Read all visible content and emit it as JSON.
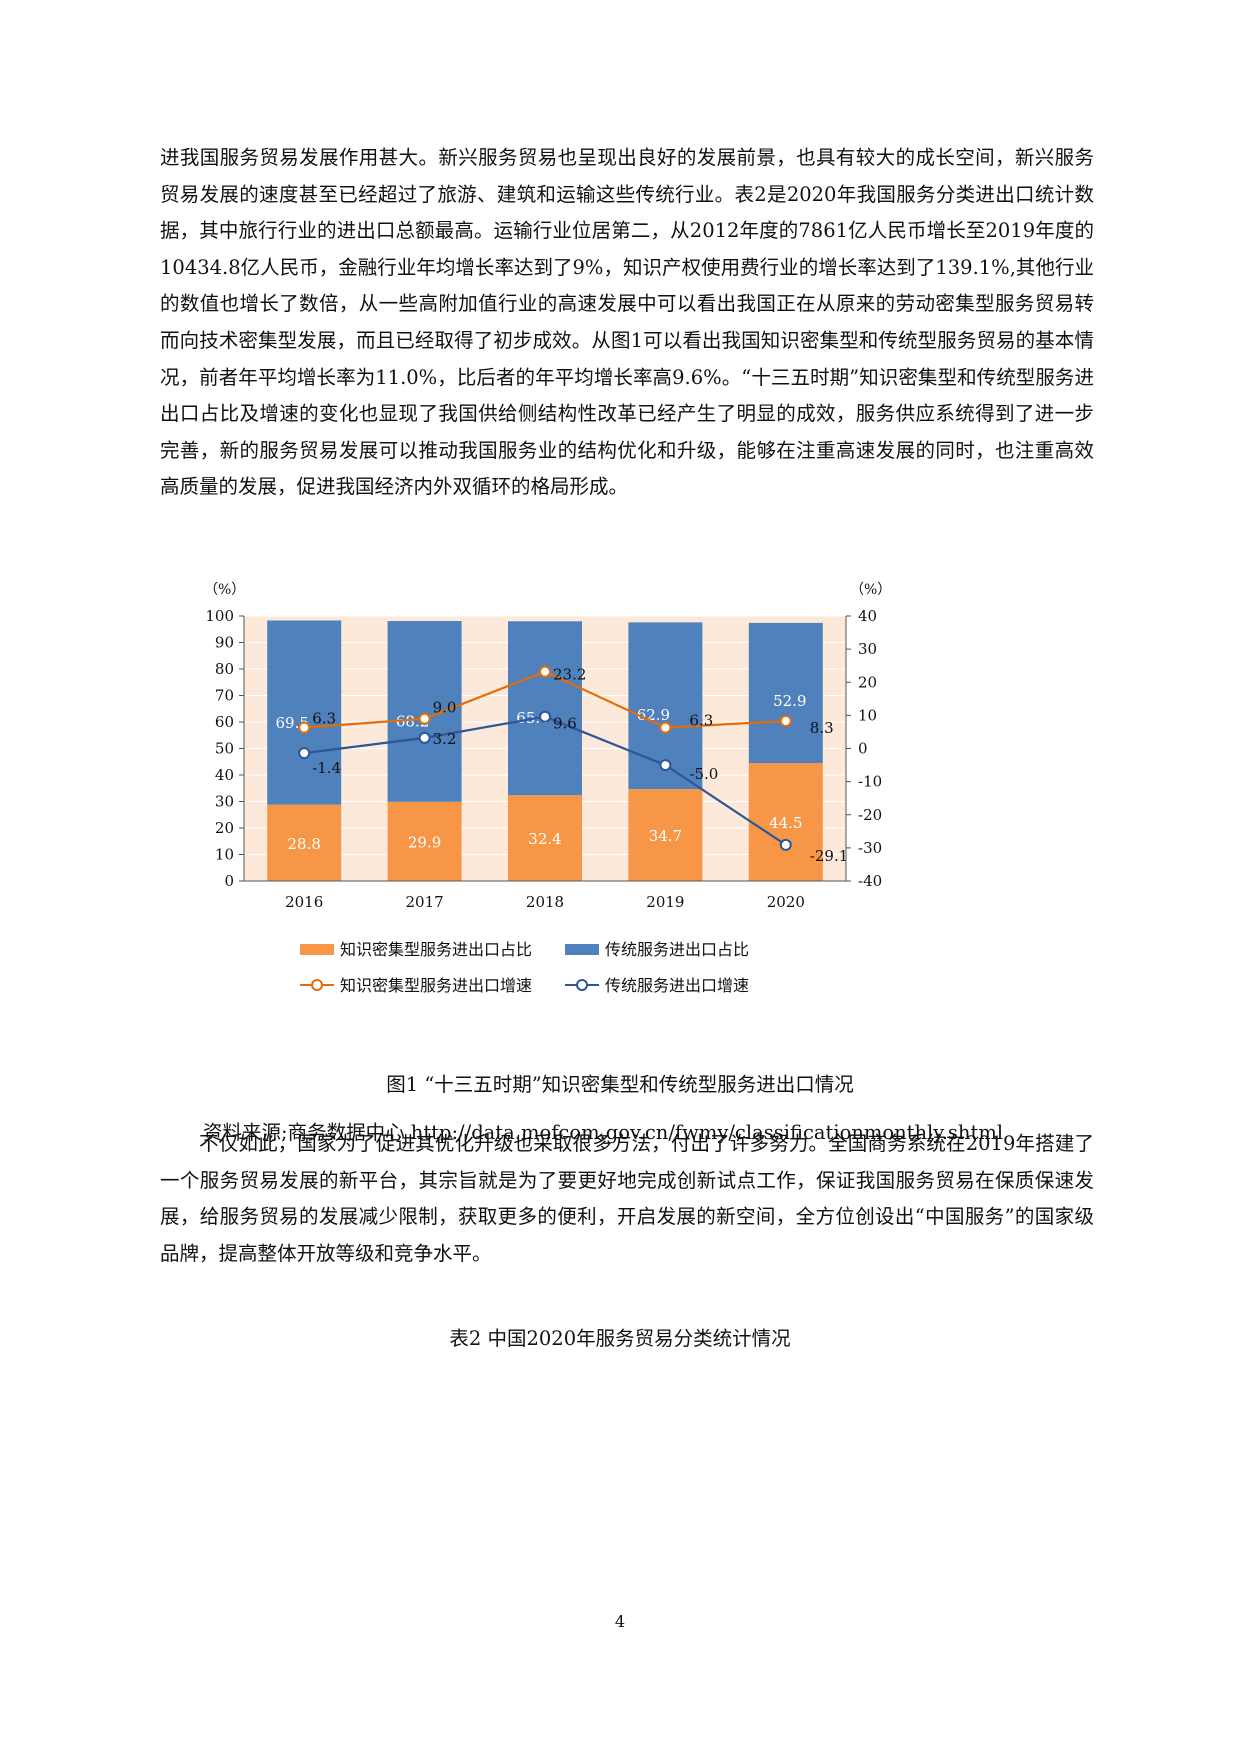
{
  "paragraphs": {
    "p1": "进我国服务贸易发展作用甚大。新兴服务贸易也呈现出良好的发展前景，也具有较大的成长空间，新兴服务贸易发展的速度甚至已经超过了旅游、建筑和运输这些传统行业。表2是2020年我国服务分类进出口统计数据，其中旅行行业的进出口总额最高。运输行业位居第二，从2012年度的7861亿人民币增长至2019年度的10434.8亿人民币，金融行业年均增长率达到了9%，知识产权使用费行业的增长率达到了139.1%,其他行业的数值也增长了数倍，从一些高附加值行业的高速发展中可以看出我国正在从原来的劳动密集型服务贸易转而向技术密集型发展，而且已经取得了初步成效。从图1可以看出我国知识密集型和传统型服务贸易的基本情况，前者年平均增长率为11.0%，比后者的年平均增长率高9.6%。“十三五时期”知识密集型和传统型服务进出口占比及增速的变化也显现了我国供给侧结构性改革已经产生了明显的成效，服务供应系统得到了进一步完善，新的服务贸易发展可以推动我国服务业的结构优化和升级，能够在注重高速发展的同时，也注重高效高质量的发展，促进我国经济内外双循环的格局形成。",
    "p2": "不仅如此，国家为了促进其优化升级也采取很多方法，付出了许多努力。全国商务系统在2019年搭建了一个服务贸易发展的新平台，其宗旨就是为了要更好地完成创新试点工作，保证我国服务贸易在保质保速发展，给服务贸易的发展减少限制，获取更多的便利，开启发展的新空间，全方位创设出“中国服务”的国家级品牌，提高整体开放等级和竞争水平。"
  },
  "figure_caption": "图1 “十三五时期”知识密集型和传统型服务进出口情况",
  "source": "资料来源;商务数据中心 http://data.mofcom.gov.cn/fwmy/classificationmonthly.shtml",
  "table_caption": "表2 中国2020年服务贸易分类统计情况",
  "page_number": "4",
  "chart_data": {
    "type": "bar",
    "categories": [
      "2016",
      "2017",
      "2018",
      "2019",
      "2020"
    ],
    "left_axis_unit": "（%）",
    "right_axis_unit": "（%）",
    "ylim_left": [
      0,
      100
    ],
    "ylim_right": [
      -40,
      40
    ],
    "yticks_left": [
      0,
      10,
      20,
      30,
      40,
      50,
      60,
      70,
      80,
      90,
      100
    ],
    "yticks_right": [
      -40,
      -30,
      -20,
      -10,
      0,
      10,
      20,
      30,
      40
    ],
    "bar_series": [
      {
        "name": "知识密集型服务进出口占比",
        "values": [
          28.8,
          29.9,
          32.4,
          34.7,
          44.5
        ],
        "color": "#f79646"
      },
      {
        "name": "传统服务进出口占比",
        "values": [
          69.5,
          68.2,
          65.6,
          62.9,
          52.9
        ],
        "color": "#4f81bd"
      }
    ],
    "line_series": [
      {
        "name": "知识密集型服务进出口增速",
        "values": [
          6.3,
          9.0,
          23.2,
          6.3,
          8.3
        ],
        "color": "#e46c0a",
        "axis": "right"
      },
      {
        "name": "传统服务进出口增速",
        "values": [
          -1.4,
          3.2,
          9.6,
          -5.0,
          -29.1
        ],
        "color": "#2e5597",
        "axis": "right"
      }
    ],
    "legend_position": "bottom",
    "plot_background": "#fde9d9"
  }
}
